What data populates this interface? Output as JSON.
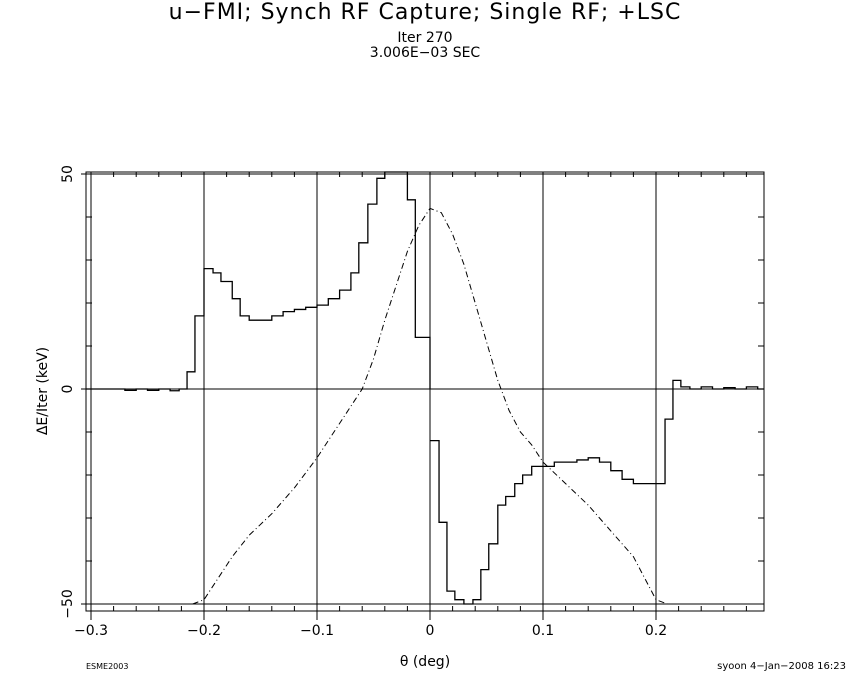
{
  "header": {
    "title": "u−FMI; Synch RF Capture; Single RF; +LSC",
    "iter": "Iter 270",
    "time": "3.006E−03 SEC"
  },
  "footer": {
    "left": "ESME2003",
    "right": "syoon  4−Jan−2008 16:23"
  },
  "chart_data": {
    "type": "line",
    "title": "u−FMI; Synch RF Capture; Single RF; +LSC",
    "xlabel": "θ (deg)",
    "ylabel": "ΔE/Iter (keV)",
    "xlim": [
      -0.3,
      0.3
    ],
    "ylim": [
      -50,
      50
    ],
    "x_ticks": [
      -0.3,
      -0.2,
      -0.1,
      0,
      0.1,
      0.2
    ],
    "x_tick_labels": [
      "−0.3",
      "−0.2",
      "−0.1",
      "0",
      "0.1",
      "0.2"
    ],
    "y_ticks": [
      -50,
      0,
      50
    ],
    "y_tick_labels": [
      "−50",
      "0",
      "50"
    ],
    "grid": true,
    "series": [
      {
        "style": "step",
        "x": [
          -0.305,
          -0.27,
          -0.26,
          -0.25,
          -0.24,
          -0.23,
          -0.222,
          -0.215,
          -0.208,
          -0.2,
          -0.192,
          -0.185,
          -0.175,
          -0.168,
          -0.16,
          -0.15,
          -0.14,
          -0.13,
          -0.12,
          -0.11,
          -0.1,
          -0.09,
          -0.08,
          -0.07,
          -0.063,
          -0.055,
          -0.047,
          -0.04,
          -0.032,
          -0.025,
          -0.02,
          -0.013,
          -0.005,
          0
        ],
        "y": [
          0,
          -0.3,
          0,
          -0.3,
          0,
          -0.4,
          0,
          4,
          17,
          28,
          27,
          25,
          21,
          17,
          16,
          16,
          17,
          18,
          18.5,
          19,
          19.5,
          21,
          23,
          27,
          34,
          43,
          49,
          53,
          64,
          52,
          44,
          12,
          12,
          null
        ]
      },
      {
        "style": "step",
        "x": [
          0,
          0.008,
          0.015,
          0.022,
          0.03,
          0.038,
          0.045,
          0.052,
          0.06,
          0.067,
          0.075,
          0.082,
          0.09,
          0.1,
          0.11,
          0.12,
          0.13,
          0.14,
          0.15,
          0.16,
          0.17,
          0.18,
          0.19,
          0.2,
          0.208,
          0.215,
          0.222,
          0.23,
          0.24,
          0.25,
          0.26,
          0.27,
          0.28,
          0.29,
          0.3
        ],
        "y": [
          -12,
          -31,
          -47,
          -49,
          -50,
          -49,
          -42,
          -36,
          -27,
          -25,
          -22,
          -20,
          -18,
          -18,
          -17,
          -17,
          -16.5,
          -16,
          -17,
          -19,
          -21,
          -22,
          -22,
          -22,
          -7,
          2,
          0.5,
          0,
          0.5,
          0,
          0.3,
          0,
          0.5,
          0,
          null
        ]
      },
      {
        "style": "dash-dot",
        "x": [
          -0.21,
          -0.2,
          -0.19,
          -0.175,
          -0.16,
          -0.14,
          -0.12,
          -0.1,
          -0.09,
          -0.08,
          -0.07,
          -0.06,
          -0.05,
          -0.04,
          -0.03,
          -0.02,
          -0.01,
          0,
          0.01,
          0.02,
          0.03,
          0.04,
          0.05,
          0.06,
          0.07,
          0.08,
          0.09,
          0.1,
          0.12,
          0.14,
          0.16,
          0.18,
          0.2,
          0.21
        ],
        "y": [
          -50,
          -49,
          -45,
          -39,
          -34,
          -29,
          -23,
          -16,
          -12,
          -8,
          -4,
          0,
          7,
          16,
          24,
          32,
          38,
          42,
          41,
          36,
          29,
          20,
          11,
          2,
          -5,
          -10,
          -13,
          -17,
          -22,
          -27,
          -33,
          -39,
          -49,
          -50
        ]
      }
    ]
  }
}
